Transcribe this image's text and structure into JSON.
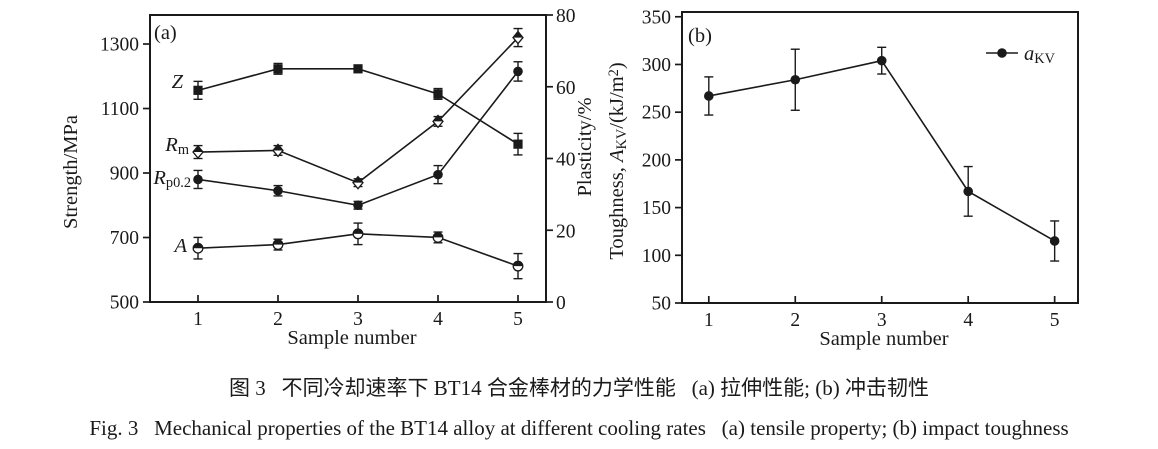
{
  "figure": {
    "caption_zh": "图 3   不同冷却速率下 BT14 合金棒材的力学性能   (a) 拉伸性能; (b) 冲击韧性",
    "caption_en": "Fig. 3   Mechanical properties of the BT14 alloy at different cooling rates   (a) tensile property; (b) impact toughness",
    "ink_color": "#1a1a1a",
    "background": "#ffffff"
  },
  "chart_data": [
    {
      "id": "a",
      "type": "line",
      "panel_label": "(a)",
      "xlabel": "Sample number",
      "x": [
        1,
        2,
        3,
        4,
        5
      ],
      "xlim": [
        0.4,
        5.35
      ],
      "grid": false,
      "legend_position": "none",
      "left_axis": {
        "label": "Strength/MPa",
        "ticks": [
          500,
          700,
          900,
          1100,
          1300
        ],
        "lim": [
          500,
          1390
        ]
      },
      "right_axis": {
        "label": "Plasticity/%",
        "ticks": [
          0,
          20,
          40,
          60,
          80
        ],
        "lim": [
          0,
          80
        ]
      },
      "series": [
        {
          "name": "Z",
          "label": "*Z*",
          "axis": "right",
          "marker": "square-filled",
          "values": [
            59,
            65,
            65,
            58,
            44
          ],
          "errors": [
            2.5,
            1.5,
            1,
            1.5,
            3
          ]
        },
        {
          "name": "Rm",
          "label": "*R*_{m}",
          "axis": "left",
          "marker": "diamond-half",
          "values": [
            965,
            970,
            870,
            1060,
            1320
          ],
          "errors": [
            20,
            15,
            12,
            15,
            28
          ]
        },
        {
          "name": "Rp0.2",
          "label": "*R*_{p0.2}",
          "axis": "left",
          "marker": "circle-filled",
          "values": [
            880,
            845,
            800,
            895,
            1215
          ],
          "errors": [
            28,
            16,
            12,
            28,
            30
          ]
        },
        {
          "name": "A",
          "label": "*A*",
          "axis": "right",
          "marker": "circle-half",
          "values": [
            15,
            16,
            19,
            18,
            10
          ],
          "errors": [
            3,
            1.5,
            3,
            1.5,
            3.5
          ]
        }
      ]
    },
    {
      "id": "b",
      "type": "line",
      "panel_label": "(b)",
      "xlabel": "Sample number",
      "x": [
        1,
        2,
        3,
        4,
        5
      ],
      "xlim": [
        0.69,
        5.27
      ],
      "grid": false,
      "legend_position": "top-right",
      "left_axis": {
        "label": "Toughness, *A*_{KV}/(kJ/m^{2})",
        "ticks": [
          50,
          100,
          150,
          200,
          250,
          300,
          350
        ],
        "lim": [
          50,
          355
        ]
      },
      "series": [
        {
          "name": "aKV",
          "label": "*a*_{KV}",
          "axis": "left",
          "marker": "circle-filled",
          "values": [
            267,
            284,
            304,
            167,
            115
          ],
          "errors": [
            20,
            32,
            14,
            26,
            21
          ]
        }
      ]
    }
  ]
}
